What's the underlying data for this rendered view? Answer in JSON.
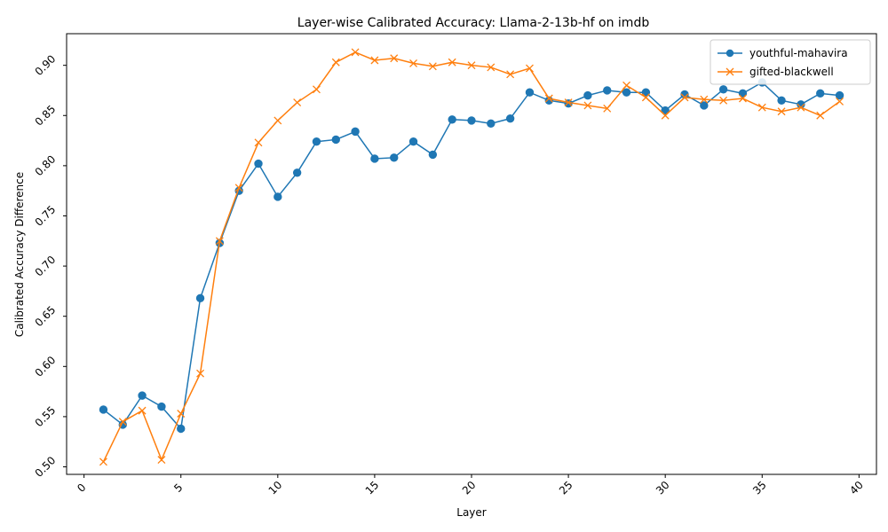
{
  "chart_data": {
    "type": "line",
    "title": "Layer-wise Calibrated Accuracy: Llama-2-13b-hf on imdb",
    "xlabel": "Layer",
    "ylabel": "Calibrated Accuracy Difference",
    "xlim": [
      -0.9,
      40.9
    ],
    "ylim": [
      0.4925,
      0.9315
    ],
    "xticks": [
      0,
      5,
      10,
      15,
      20,
      25,
      30,
      35,
      40
    ],
    "yticks": [
      0.5,
      0.55,
      0.6,
      0.65,
      0.7,
      0.75,
      0.8,
      0.85,
      0.9
    ],
    "xtick_labels": [
      "0",
      "5",
      "10",
      "15",
      "20",
      "25",
      "30",
      "35",
      "40"
    ],
    "ytick_labels": [
      "0.50",
      "0.55",
      "0.60",
      "0.65",
      "0.70",
      "0.75",
      "0.80",
      "0.85",
      "0.90"
    ],
    "grid": false,
    "legend_position": "top-right",
    "x": [
      1,
      2,
      3,
      4,
      5,
      6,
      7,
      8,
      9,
      10,
      11,
      12,
      13,
      14,
      15,
      16,
      17,
      18,
      19,
      20,
      21,
      22,
      23,
      24,
      25,
      26,
      27,
      28,
      29,
      30,
      31,
      32,
      33,
      34,
      35,
      36,
      37,
      38,
      39
    ],
    "series": [
      {
        "name": "youthful-mahavira",
        "color": "#1f77b4",
        "marker": "circle",
        "values": [
          0.557,
          0.542,
          0.571,
          0.56,
          0.538,
          0.668,
          0.723,
          0.775,
          0.802,
          0.769,
          0.793,
          0.824,
          0.826,
          0.834,
          0.807,
          0.808,
          0.824,
          0.811,
          0.846,
          0.845,
          0.842,
          0.847,
          0.873,
          0.865,
          0.862,
          0.87,
          0.875,
          0.873,
          0.873,
          0.855,
          0.871,
          0.86,
          0.876,
          0.872,
          0.883,
          0.865,
          0.861,
          0.872,
          0.87
        ]
      },
      {
        "name": "gifted-blackwell",
        "color": "#ff7f0e",
        "marker": "x",
        "values": [
          0.505,
          0.545,
          0.556,
          0.507,
          0.553,
          0.593,
          0.725,
          0.778,
          0.823,
          0.845,
          0.863,
          0.876,
          0.903,
          0.913,
          0.905,
          0.907,
          0.902,
          0.899,
          0.903,
          0.9,
          0.898,
          0.891,
          0.897,
          0.867,
          0.863,
          0.86,
          0.857,
          0.88,
          0.868,
          0.85,
          0.868,
          0.866,
          0.865,
          0.867,
          0.858,
          0.854,
          0.858,
          0.85,
          0.864
        ]
      }
    ]
  }
}
